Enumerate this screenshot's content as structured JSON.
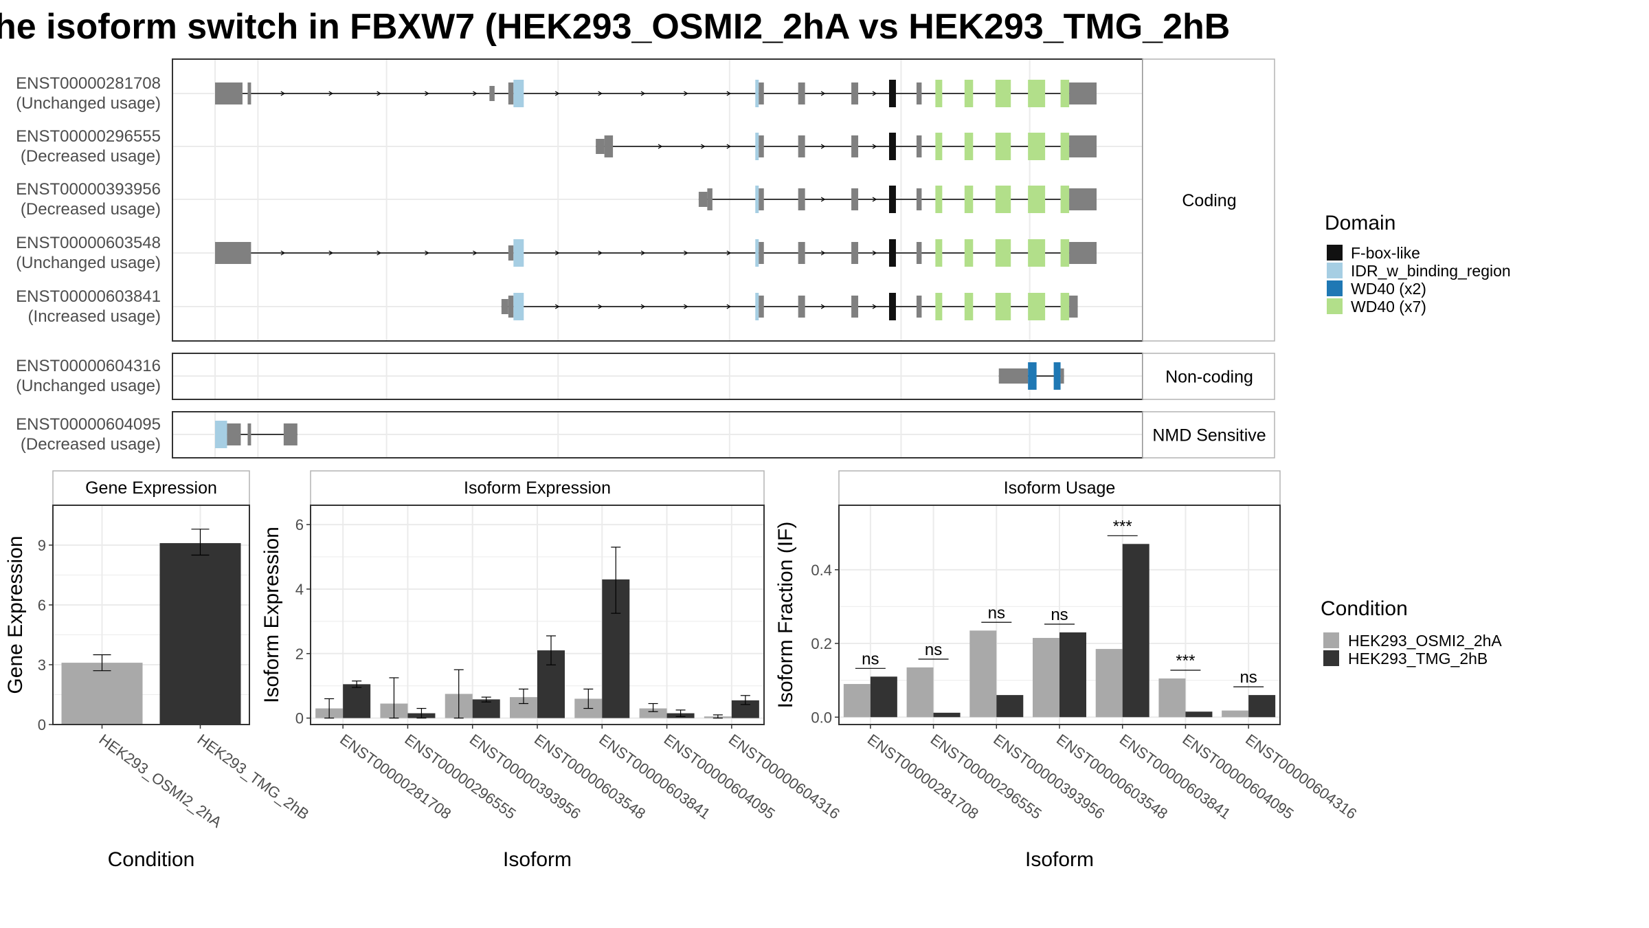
{
  "title": "he isoform switch in FBXW7 (HEK293_OSMI2_2hA vs HEK293_TMG_2hB",
  "colors": {
    "intron": "#000000",
    "exon": "#808080",
    "F-box-like": "#111111",
    "IDR_w_binding_region": "#a6cee3",
    "WD40 (x2)": "#1f78b4",
    "WD40 (x7)": "#b2df8a",
    "cond1": "#a9a9a9",
    "cond2": "#333333",
    "grid": "#ebebeb",
    "panel_border": "#333333",
    "strip_bg": "#ffffff",
    "strip_border": "#b3b3b3"
  },
  "structure": {
    "groups": [
      {
        "name": "Coding",
        "transcripts": [
          {
            "id": "ENST00000281708",
            "usage": "(Unchanged usage)",
            "features": [
              {
                "s": 0,
                "e": 16,
                "t": "exon",
                "h": "thick"
              },
              {
                "s": 19,
                "e": 21,
                "t": "exon",
                "h": "thick"
              },
              {
                "s": 160,
                "e": 163,
                "t": "exon",
                "h": "thin"
              },
              {
                "s": 171,
                "e": 174,
                "t": "exon",
                "h": "thick"
              },
              {
                "s": 174,
                "e": 180,
                "t": "IDR_w_binding_region"
              },
              {
                "s": 315,
                "e": 317,
                "t": "IDR_w_binding_region"
              },
              {
                "s": 317,
                "e": 320,
                "t": "exon",
                "h": "thick"
              },
              {
                "s": 340,
                "e": 344,
                "t": "exon",
                "h": "thick"
              },
              {
                "s": 371,
                "e": 375,
                "t": "exon",
                "h": "thick"
              },
              {
                "s": 393,
                "e": 397,
                "t": "F-box-like"
              },
              {
                "s": 409,
                "e": 412,
                "t": "exon",
                "h": "thick"
              },
              {
                "s": 420,
                "e": 424,
                "t": "WD40 (x7)"
              },
              {
                "s": 437,
                "e": 442,
                "t": "WD40 (x7)"
              },
              {
                "s": 455,
                "e": 464,
                "t": "WD40 (x7)"
              },
              {
                "s": 474,
                "e": 484,
                "t": "WD40 (x7)"
              },
              {
                "s": 493,
                "e": 498,
                "t": "WD40 (x7)"
              },
              {
                "s": 498,
                "e": 514,
                "t": "exon",
                "h": "thick"
              }
            ],
            "arrows": [
              40,
              68,
              96,
              124,
              152,
              200,
              225,
              250,
              275,
              300,
              355,
              385
            ]
          },
          {
            "id": "ENST00000296555",
            "usage": "(Decreased usage)",
            "features": [
              {
                "s": 222,
                "e": 227,
                "t": "exon",
                "h": "thin"
              },
              {
                "s": 227,
                "e": 232,
                "t": "exon",
                "h": "thick"
              },
              {
                "s": 315,
                "e": 317,
                "t": "IDR_w_binding_region"
              },
              {
                "s": 317,
                "e": 320,
                "t": "exon",
                "h": "thick"
              },
              {
                "s": 340,
                "e": 344,
                "t": "exon",
                "h": "thick"
              },
              {
                "s": 371,
                "e": 375,
                "t": "exon",
                "h": "thick"
              },
              {
                "s": 393,
                "e": 397,
                "t": "F-box-like"
              },
              {
                "s": 409,
                "e": 412,
                "t": "exon",
                "h": "thick"
              },
              {
                "s": 420,
                "e": 424,
                "t": "WD40 (x7)"
              },
              {
                "s": 437,
                "e": 442,
                "t": "WD40 (x7)"
              },
              {
                "s": 455,
                "e": 464,
                "t": "WD40 (x7)"
              },
              {
                "s": 474,
                "e": 484,
                "t": "WD40 (x7)"
              },
              {
                "s": 493,
                "e": 498,
                "t": "WD40 (x7)"
              },
              {
                "s": 498,
                "e": 514,
                "t": "exon",
                "h": "thick"
              }
            ],
            "arrows": [
              260,
              285,
              300,
              355,
              385
            ]
          },
          {
            "id": "ENST00000393956",
            "usage": "(Decreased usage)",
            "features": [
              {
                "s": 282,
                "e": 287,
                "t": "exon",
                "h": "thin"
              },
              {
                "s": 287,
                "e": 290,
                "t": "exon",
                "h": "thick"
              },
              {
                "s": 315,
                "e": 317,
                "t": "IDR_w_binding_region"
              },
              {
                "s": 317,
                "e": 320,
                "t": "exon",
                "h": "thick"
              },
              {
                "s": 340,
                "e": 344,
                "t": "exon",
                "h": "thick"
              },
              {
                "s": 371,
                "e": 375,
                "t": "exon",
                "h": "thick"
              },
              {
                "s": 393,
                "e": 397,
                "t": "F-box-like"
              },
              {
                "s": 409,
                "e": 412,
                "t": "exon",
                "h": "thick"
              },
              {
                "s": 420,
                "e": 424,
                "t": "WD40 (x7)"
              },
              {
                "s": 437,
                "e": 442,
                "t": "WD40 (x7)"
              },
              {
                "s": 455,
                "e": 464,
                "t": "WD40 (x7)"
              },
              {
                "s": 474,
                "e": 484,
                "t": "WD40 (x7)"
              },
              {
                "s": 493,
                "e": 498,
                "t": "WD40 (x7)"
              },
              {
                "s": 498,
                "e": 514,
                "t": "exon",
                "h": "thick"
              }
            ],
            "arrows": [
              355,
              385
            ]
          },
          {
            "id": "ENST00000603548",
            "usage": "(Unchanged usage)",
            "features": [
              {
                "s": 0,
                "e": 21,
                "t": "exon",
                "h": "thick"
              },
              {
                "s": 171,
                "e": 174,
                "t": "exon",
                "h": "thin"
              },
              {
                "s": 174,
                "e": 180,
                "t": "IDR_w_binding_region"
              },
              {
                "s": 315,
                "e": 317,
                "t": "IDR_w_binding_region"
              },
              {
                "s": 317,
                "e": 320,
                "t": "exon",
                "h": "thick"
              },
              {
                "s": 340,
                "e": 344,
                "t": "exon",
                "h": "thick"
              },
              {
                "s": 371,
                "e": 375,
                "t": "exon",
                "h": "thick"
              },
              {
                "s": 393,
                "e": 397,
                "t": "F-box-like"
              },
              {
                "s": 409,
                "e": 412,
                "t": "exon",
                "h": "thick"
              },
              {
                "s": 420,
                "e": 424,
                "t": "WD40 (x7)"
              },
              {
                "s": 437,
                "e": 442,
                "t": "WD40 (x7)"
              },
              {
                "s": 455,
                "e": 464,
                "t": "WD40 (x7)"
              },
              {
                "s": 474,
                "e": 484,
                "t": "WD40 (x7)"
              },
              {
                "s": 493,
                "e": 498,
                "t": "WD40 (x7)"
              },
              {
                "s": 498,
                "e": 514,
                "t": "exon",
                "h": "thick"
              }
            ],
            "arrows": [
              40,
              68,
              96,
              124,
              152,
              200,
              225,
              250,
              275,
              300,
              355,
              385
            ]
          },
          {
            "id": "ENST00000603841",
            "usage": "(Increased usage)",
            "features": [
              {
                "s": 167,
                "e": 171,
                "t": "exon",
                "h": "thin"
              },
              {
                "s": 171,
                "e": 174,
                "t": "exon",
                "h": "thick"
              },
              {
                "s": 174,
                "e": 180,
                "t": "IDR_w_binding_region"
              },
              {
                "s": 315,
                "e": 317,
                "t": "IDR_w_binding_region"
              },
              {
                "s": 317,
                "e": 320,
                "t": "exon",
                "h": "thick"
              },
              {
                "s": 340,
                "e": 344,
                "t": "exon",
                "h": "thick"
              },
              {
                "s": 371,
                "e": 375,
                "t": "exon",
                "h": "thick"
              },
              {
                "s": 393,
                "e": 397,
                "t": "F-box-like"
              },
              {
                "s": 409,
                "e": 412,
                "t": "exon",
                "h": "thick"
              },
              {
                "s": 420,
                "e": 424,
                "t": "WD40 (x7)"
              },
              {
                "s": 437,
                "e": 442,
                "t": "WD40 (x7)"
              },
              {
                "s": 455,
                "e": 464,
                "t": "WD40 (x7)"
              },
              {
                "s": 474,
                "e": 484,
                "t": "WD40 (x7)"
              },
              {
                "s": 493,
                "e": 498,
                "t": "WD40 (x7)"
              },
              {
                "s": 498,
                "e": 503,
                "t": "exon",
                "h": "thick"
              }
            ],
            "arrows": [
              200,
              225,
              250,
              275,
              300,
              355,
              385
            ]
          }
        ]
      },
      {
        "name": "Non-coding",
        "transcripts": [
          {
            "id": "ENST00000604316",
            "usage": "(Unchanged usage)",
            "features": [
              {
                "s": 457,
                "e": 474,
                "t": "exon",
                "h": "thin"
              },
              {
                "s": 474,
                "e": 479,
                "t": "WD40 (x2)"
              },
              {
                "s": 489,
                "e": 493,
                "t": "WD40 (x2)"
              },
              {
                "s": 493,
                "e": 495,
                "t": "exon",
                "h": "thin"
              }
            ],
            "arrows": []
          }
        ]
      },
      {
        "name": "NMD Sensitive",
        "transcripts": [
          {
            "id": "ENST00000604095",
            "usage": "(Decreased usage)",
            "features": [
              {
                "s": 0,
                "e": 7,
                "t": "IDR_w_binding_region"
              },
              {
                "s": 7,
                "e": 15,
                "t": "exon",
                "h": "thick"
              },
              {
                "s": 19,
                "e": 21,
                "t": "exon",
                "h": "thick"
              },
              {
                "s": 40,
                "e": 48,
                "t": "exon",
                "h": "thick"
              }
            ],
            "arrows": []
          }
        ]
      }
    ]
  },
  "legend_domain": {
    "title": "Domain",
    "items": [
      "F-box-like",
      "IDR_w_binding_region",
      "WD40 (x2)",
      "WD40 (x7)"
    ]
  },
  "legend_condition": {
    "title": "Condition",
    "items": [
      "HEK293_OSMI2_2hA",
      "HEK293_TMG_2hB"
    ]
  },
  "chart_data": [
    {
      "type": "bar",
      "title": "Gene Expression",
      "xlabel": "Condition",
      "ylabel": "Gene Expression",
      "categories": [
        "HEK293_OSMI2_2hA",
        "HEK293_TMG_2hB"
      ],
      "values": [
        3.1,
        9.1
      ],
      "errors": [
        [
          2.7,
          3.5
        ],
        [
          8.5,
          9.8
        ]
      ],
      "ylim": [
        0,
        11
      ],
      "yticks": [
        0,
        3,
        6,
        9
      ]
    },
    {
      "type": "bar",
      "title": "Isoform Expression",
      "xlabel": "Isoform",
      "ylabel": "Isoform Expression",
      "categories": [
        "ENST00000281708",
        "ENST00000296555",
        "ENST00000393956",
        "ENST00000603548",
        "ENST00000603841",
        "ENST00000604095",
        "ENST00000604316"
      ],
      "series": [
        {
          "name": "HEK293_OSMI2_2hA",
          "values": [
            0.3,
            0.45,
            0.75,
            0.65,
            0.6,
            0.3,
            0.05
          ],
          "errors": [
            [
              0.0,
              0.6
            ],
            [
              0.0,
              1.25
            ],
            [
              0.0,
              1.5
            ],
            [
              0.45,
              0.9
            ],
            [
              0.3,
              0.9
            ],
            [
              0.2,
              0.45
            ],
            [
              0.0,
              0.1
            ]
          ]
        },
        {
          "name": "HEK293_TMG_2hB",
          "values": [
            1.05,
            0.15,
            0.58,
            2.1,
            4.3,
            0.15,
            0.55
          ],
          "errors": [
            [
              0.95,
              1.15
            ],
            [
              0.0,
              0.3
            ],
            [
              0.5,
              0.65
            ],
            [
              1.65,
              2.55
            ],
            [
              3.25,
              5.3
            ],
            [
              0.05,
              0.25
            ],
            [
              0.42,
              0.7
            ]
          ]
        }
      ],
      "ylim": [
        -0.2,
        6.6
      ],
      "yticks": [
        0,
        2,
        4,
        6
      ]
    },
    {
      "type": "bar",
      "title": "Isoform Usage",
      "xlabel": "Isoform",
      "ylabel": "Isoform Fraction (IF)",
      "categories": [
        "ENST00000281708",
        "ENST00000296555",
        "ENST00000393956",
        "ENST00000603548",
        "ENST00000603841",
        "ENST00000604095",
        "ENST00000604316"
      ],
      "series": [
        {
          "name": "HEK293_OSMI2_2hA",
          "values": [
            0.09,
            0.135,
            0.235,
            0.215,
            0.185,
            0.105,
            0.018
          ]
        },
        {
          "name": "HEK293_TMG_2hB",
          "values": [
            0.11,
            0.012,
            0.06,
            0.23,
            0.47,
            0.015,
            0.06
          ]
        }
      ],
      "significance": [
        "ns",
        "ns",
        "ns",
        "ns",
        "***",
        "***",
        "ns"
      ],
      "ylim": [
        -0.02,
        0.575
      ],
      "yticks": [
        0.0,
        0.2,
        0.4
      ]
    }
  ]
}
